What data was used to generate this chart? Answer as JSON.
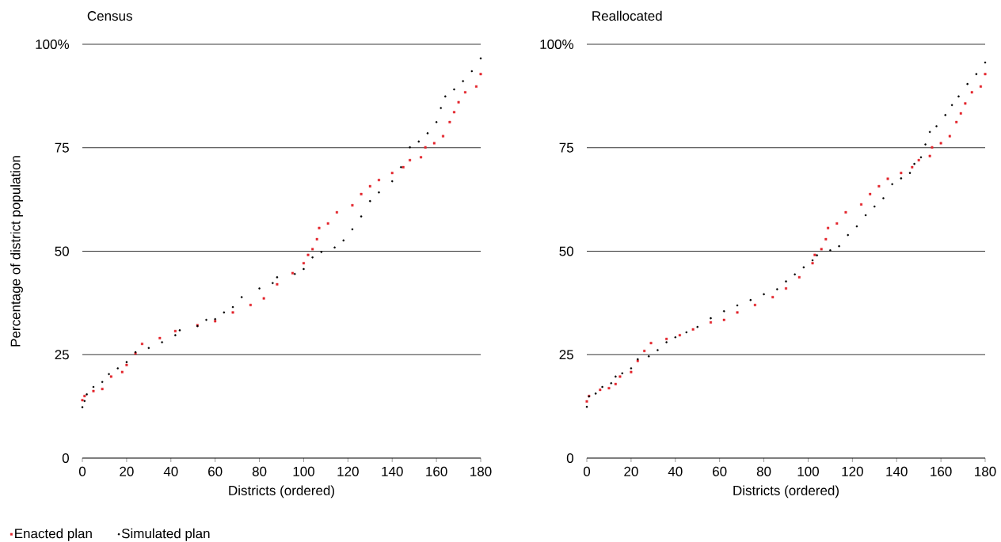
{
  "chart_data": [
    {
      "type": "scatter",
      "title": "Census",
      "xlabel": "Districts (ordered)",
      "ylabel": "Percentage of district population",
      "xlim": [
        0,
        180
      ],
      "ylim": [
        0,
        100
      ],
      "xticks": [
        0,
        20,
        40,
        60,
        80,
        100,
        120,
        140,
        160,
        180
      ],
      "yticks": [
        0,
        25,
        50,
        75,
        {
          "value": 100,
          "label": "100%"
        }
      ],
      "grid": "y",
      "legend": "bottom left",
      "series": [
        {
          "name": "Enacted plan",
          "color": "#e3242b",
          "marker": "square",
          "x": [
            0,
            1,
            5,
            9,
            13,
            18,
            20,
            24,
            27,
            35,
            42,
            52,
            60,
            68,
            76,
            82,
            88,
            95,
            100,
            102,
            104,
            106,
            107,
            111,
            115,
            122,
            126,
            130,
            134,
            140,
            145,
            148,
            153,
            155,
            159,
            163,
            166,
            168,
            170,
            173,
            178,
            180
          ],
          "values": [
            14.0,
            15.0,
            16.2,
            16.7,
            19.7,
            20.8,
            22.5,
            25.3,
            27.6,
            29.0,
            30.7,
            32.1,
            33.1,
            35.2,
            37.0,
            38.6,
            42.0,
            44.7,
            47.1,
            49.1,
            50.5,
            52.9,
            55.6,
            56.7,
            59.4,
            61.1,
            63.8,
            65.7,
            67.2,
            68.9,
            70.3,
            72.0,
            72.7,
            75.1,
            76.1,
            77.8,
            81.2,
            83.6,
            86.0,
            88.4,
            89.8,
            92.8
          ]
        },
        {
          "name": "Simulated  plan",
          "color": "#000000",
          "marker": "circle",
          "x": [
            0,
            1,
            2,
            5,
            9,
            12,
            16,
            20,
            24,
            30,
            36,
            42,
            44,
            52,
            56,
            60,
            64,
            68,
            72,
            80,
            86,
            88,
            96,
            100,
            104,
            108,
            114,
            118,
            122,
            126,
            130,
            134,
            140,
            144,
            148,
            152,
            156,
            160,
            162,
            164,
            168,
            172,
            176,
            180
          ],
          "values": [
            12.3,
            13.8,
            15.4,
            17.2,
            18.4,
            20.3,
            21.7,
            23.2,
            25.6,
            26.6,
            28.0,
            29.7,
            30.9,
            31.9,
            33.4,
            33.6,
            35.2,
            36.5,
            38.9,
            41.0,
            42.3,
            43.7,
            44.5,
            45.7,
            48.5,
            49.8,
            50.9,
            52.6,
            55.3,
            58.4,
            62.1,
            64.2,
            66.9,
            70.3,
            75.1,
            76.5,
            78.5,
            81.2,
            84.6,
            87.4,
            89.1,
            91.1,
            93.5,
            96.6
          ]
        }
      ]
    },
    {
      "type": "scatter",
      "title": "Reallocated",
      "xlabel": "Districts (ordered)",
      "xlim": [
        0,
        180
      ],
      "ylim": [
        0,
        100
      ],
      "xticks": [
        0,
        20,
        40,
        60,
        80,
        100,
        120,
        140,
        160,
        180
      ],
      "yticks": [
        0,
        25,
        50,
        75,
        {
          "value": 100,
          "label": "100%"
        }
      ],
      "grid": "y",
      "series": [
        {
          "color": "#e3242b",
          "marker": "square",
          "x": [
            0,
            1,
            6,
            10,
            13,
            15,
            20,
            23,
            26,
            29,
            36,
            42,
            48,
            56,
            62,
            68,
            76,
            84,
            90,
            96,
            102,
            103,
            106,
            108,
            109,
            113,
            117,
            124,
            128,
            132,
            136,
            142,
            147,
            150,
            155,
            156,
            160,
            164,
            167,
            169,
            171,
            174,
            178,
            180
          ],
          "values": [
            13.7,
            15.0,
            16.5,
            16.9,
            17.9,
            19.7,
            20.8,
            23.5,
            25.9,
            27.8,
            28.8,
            29.7,
            31.1,
            32.8,
            33.4,
            35.2,
            37.0,
            38.9,
            41.0,
            43.7,
            47.1,
            49.1,
            50.5,
            52.9,
            55.6,
            56.7,
            59.4,
            61.3,
            63.8,
            65.7,
            67.5,
            68.9,
            70.3,
            72.0,
            73.0,
            75.1,
            76.1,
            77.8,
            81.2,
            83.3,
            85.7,
            88.4,
            89.8,
            92.8
          ]
        },
        {
          "color": "#000000",
          "marker": "circle",
          "x": [
            0,
            1,
            4,
            7,
            11,
            13,
            16,
            20,
            23,
            28,
            32,
            36,
            40,
            45,
            50,
            56,
            62,
            68,
            74,
            80,
            86,
            90,
            94,
            98,
            102,
            104,
            110,
            114,
            118,
            122,
            126,
            130,
            134,
            138,
            142,
            146,
            148,
            151,
            153,
            155,
            158,
            162,
            165,
            168,
            172,
            176,
            180
          ],
          "values": [
            12.4,
            14.9,
            15.6,
            17.2,
            18.1,
            19.7,
            20.5,
            21.7,
            23.9,
            24.6,
            26.1,
            28.0,
            29.2,
            30.4,
            31.7,
            33.8,
            35.5,
            36.9,
            38.2,
            39.6,
            40.8,
            42.7,
            44.4,
            46.1,
            47.8,
            49.0,
            50.2,
            51.2,
            53.9,
            56.0,
            58.7,
            60.8,
            62.8,
            66.2,
            67.6,
            68.9,
            71.1,
            72.7,
            75.8,
            78.8,
            80.2,
            82.9,
            85.3,
            87.4,
            90.4,
            92.8,
            95.6
          ]
        }
      ]
    }
  ]
}
